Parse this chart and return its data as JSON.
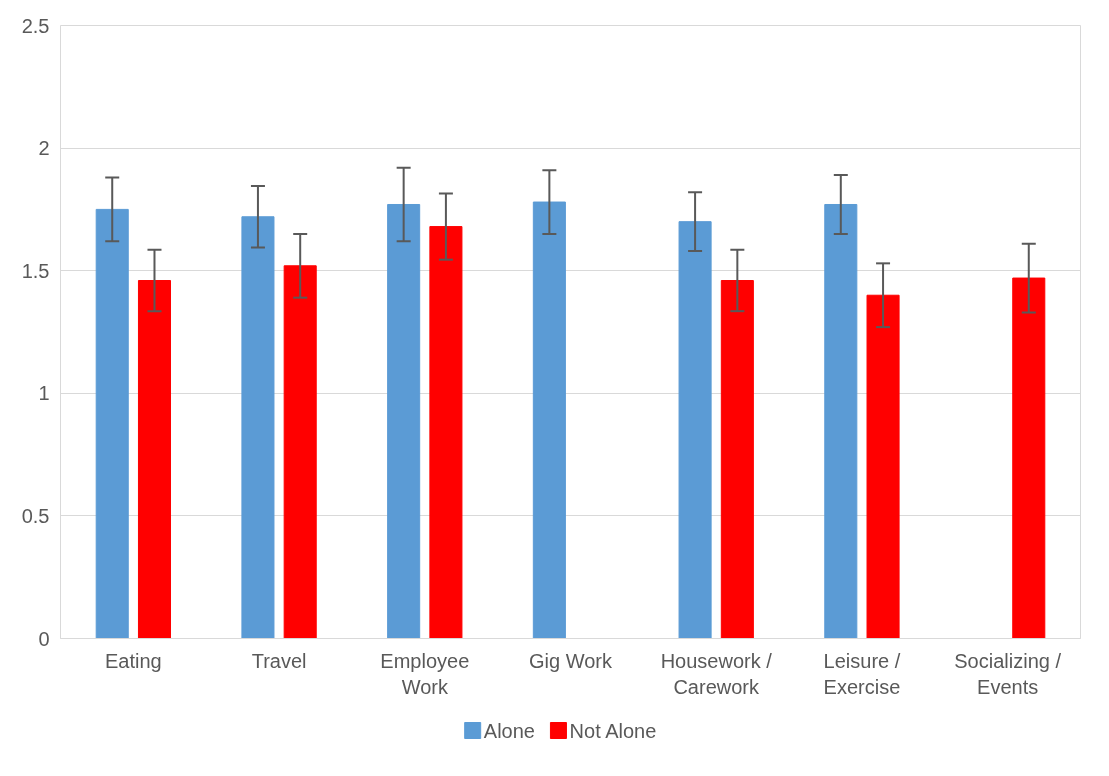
{
  "chart_data": {
    "type": "bar",
    "categories": [
      "Eating",
      "Travel",
      "Employee\nWork",
      "Gig Work",
      "Housework /\nCarework",
      "Leisure /\nExercise",
      "Socializing /\nEvents"
    ],
    "series": [
      {
        "name": "Alone",
        "color": "#5b9bd5",
        "values": [
          1.75,
          1.72,
          1.77,
          1.78,
          1.7,
          1.77,
          null
        ],
        "errors": [
          0.13,
          0.125,
          0.15,
          0.13,
          0.12,
          0.12,
          null
        ]
      },
      {
        "name": "Not Alone",
        "color": "#ff0000",
        "values": [
          1.46,
          1.52,
          1.68,
          null,
          1.46,
          1.4,
          1.47
        ],
        "errors": [
          0.125,
          0.13,
          0.135,
          null,
          0.125,
          0.13,
          0.14
        ]
      }
    ],
    "ylim": [
      0,
      2.5
    ],
    "yticks": [
      0,
      0.5,
      1,
      1.5,
      2,
      2.5
    ],
    "grid": "y",
    "legend": "bottom"
  }
}
